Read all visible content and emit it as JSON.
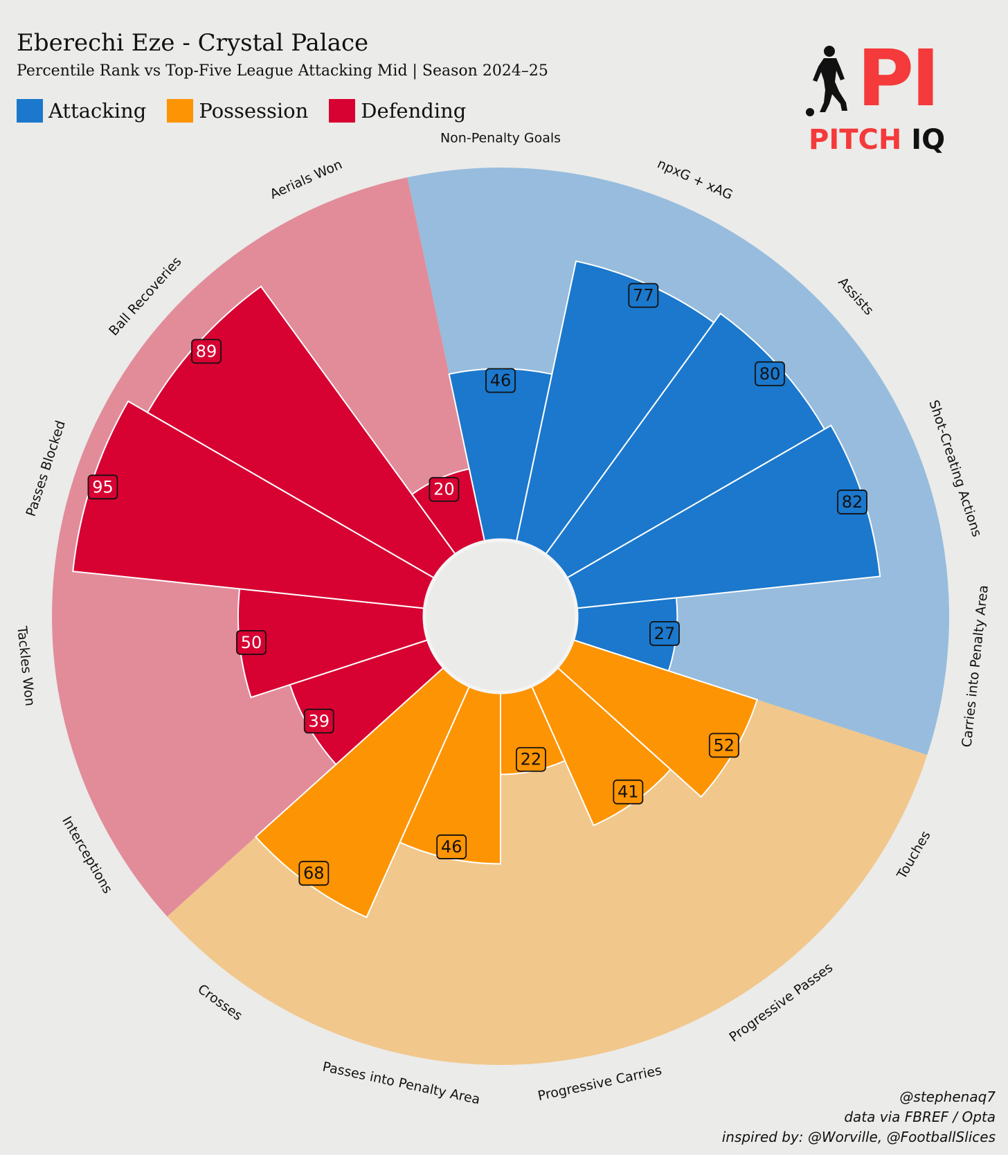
{
  "header": {
    "title": "Eberechi Eze - Crystal Palace",
    "subtitle": "Percentile Rank vs Top-Five League Attacking Mid | Season 2024–25"
  },
  "legend": {
    "items": [
      {
        "label": "Attacking",
        "color": "#1b78cc"
      },
      {
        "label": "Possession",
        "color": "#fd9403"
      },
      {
        "label": "Defending",
        "color": "#d70232"
      }
    ]
  },
  "logo": {
    "mark": "PI",
    "word_part1": "PITCH",
    "word_part2": "IQ"
  },
  "footer": {
    "line1": "@stephenaq7",
    "line2": "data via FBREF / Opta",
    "line3": "inspired by: @Worville, @FootballSlices"
  },
  "chart_data": {
    "type": "polar-bar",
    "title": "Percentile Rank vs Top-Five League Attacking Mid",
    "range": [
      0,
      100
    ],
    "categories": [
      "Non-Penalty Goals",
      "npxG + xAG",
      "Assists",
      "Shot-Creating Actions",
      "Carries into Penalty Area",
      "Touches",
      "Progressive Passes",
      "Progressive Carries",
      "Passes into Penalty Area",
      "Crosses",
      "Interceptions",
      "Tackles Won",
      "Passes Blocked",
      "Ball Recoveries",
      "Aerials Won"
    ],
    "values": [
      46,
      77,
      80,
      82,
      27,
      52,
      41,
      22,
      46,
      68,
      39,
      50,
      95,
      89,
      20
    ],
    "groups": [
      "Attacking",
      "Attacking",
      "Attacking",
      "Attacking",
      "Attacking",
      "Possession",
      "Possession",
      "Possession",
      "Possession",
      "Possession",
      "Defending",
      "Defending",
      "Defending",
      "Defending",
      "Defending"
    ],
    "group_colors": {
      "Attacking": {
        "bar": "#1b78cc",
        "background": "#97bcdd"
      },
      "Possession": {
        "bar": "#fd9403",
        "background": "#f1c78c"
      },
      "Defending": {
        "bar": "#d70232",
        "background": "#e28c9a"
      }
    }
  }
}
